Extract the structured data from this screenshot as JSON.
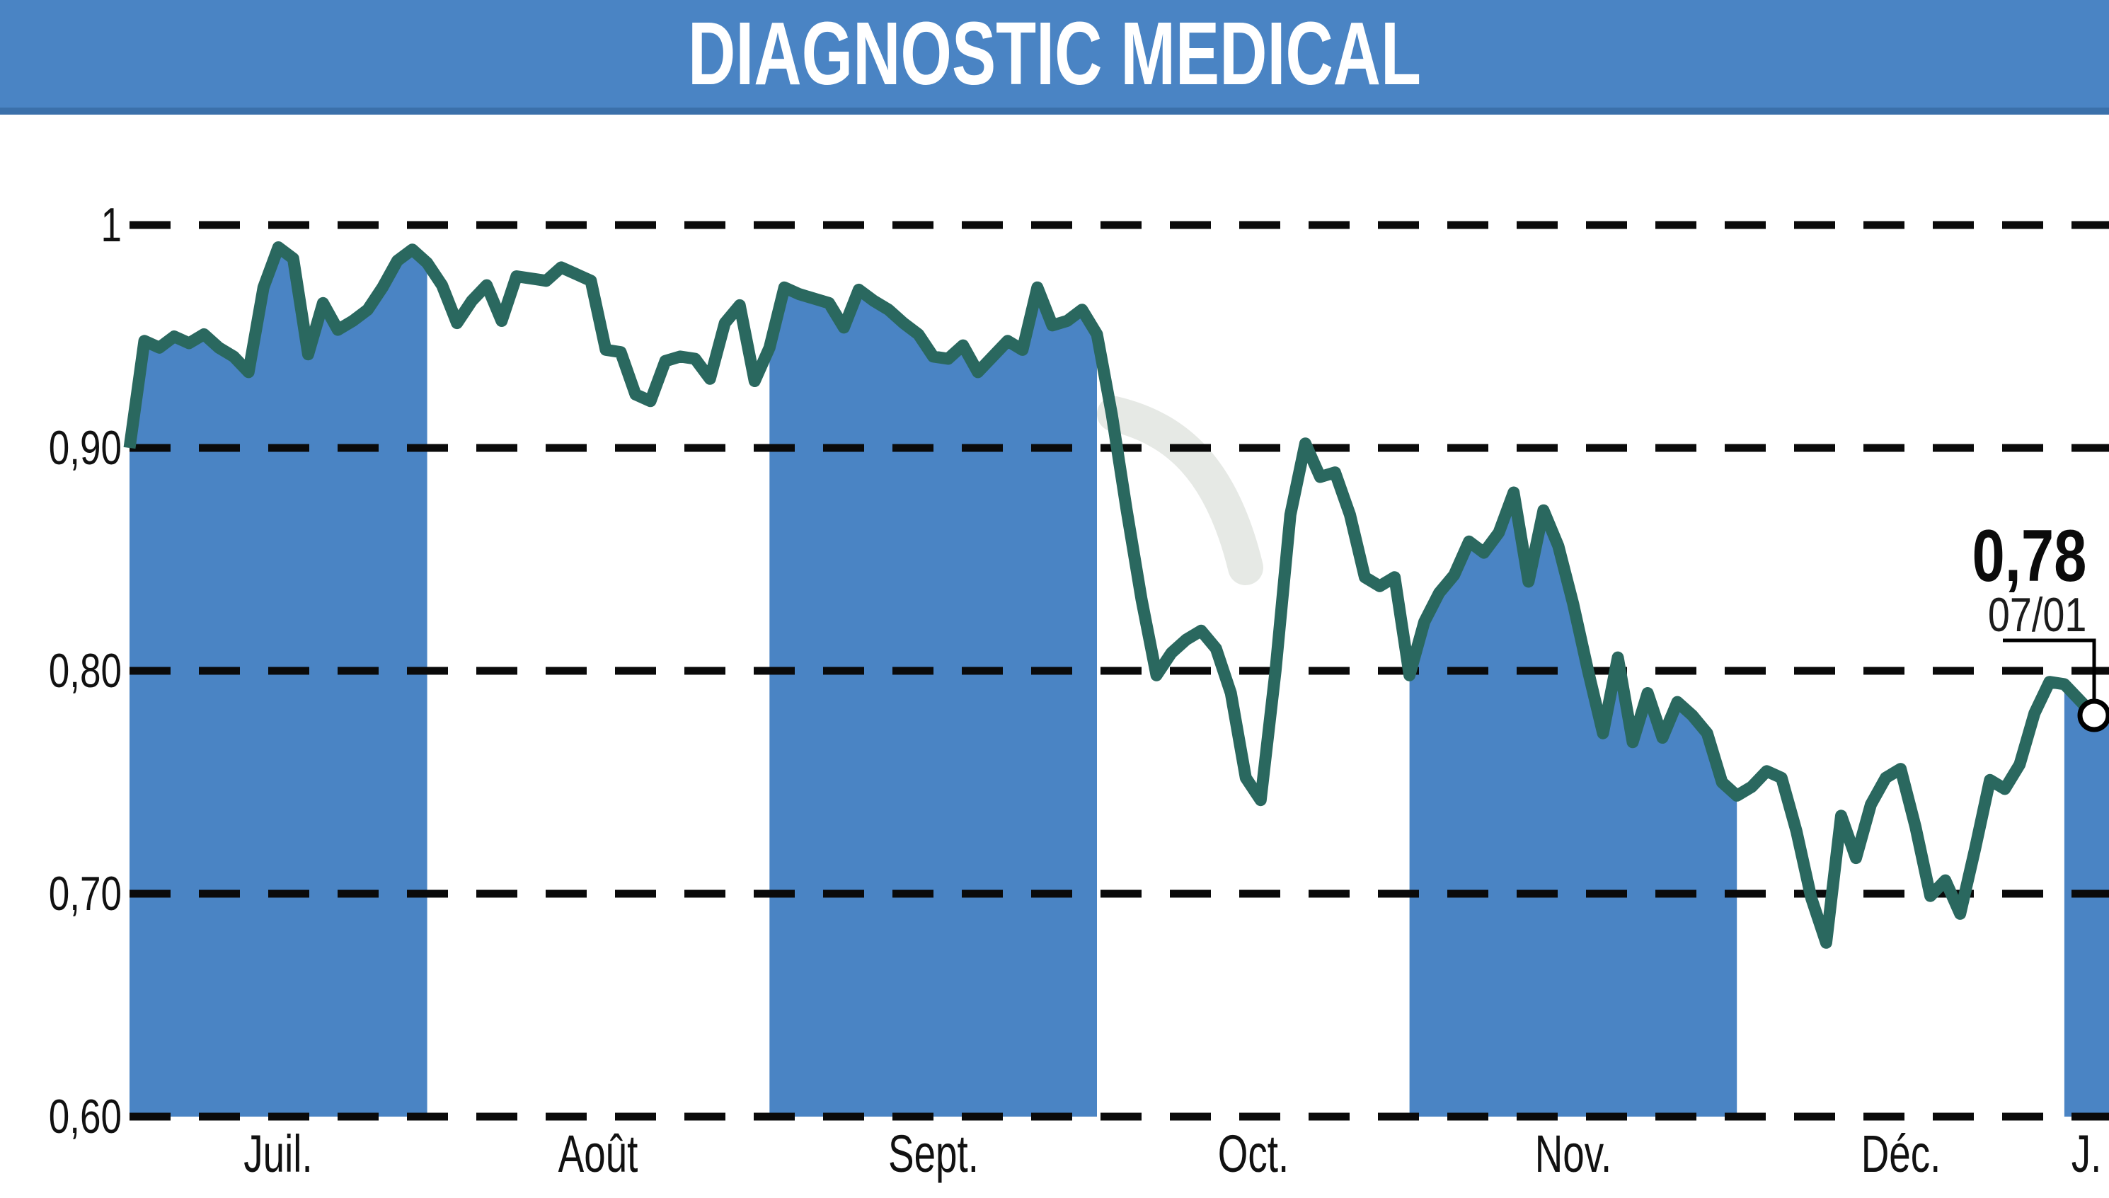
{
  "header": {
    "title": "DIAGNOSTIC MEDICAL",
    "bg_color": "#4a84c4",
    "edge_color": "#3b70aa",
    "text_color": "#ffffff"
  },
  "watermark": {
    "name": "swoosh-watermark",
    "color": "#e3e7e2"
  },
  "chart_data": {
    "type": "area",
    "title": "DIAGNOSTIC MEDICAL",
    "xlabel": "",
    "ylabel": "",
    "ylim": [
      0.6,
      1.0
    ],
    "grid": "dashed-horizontal-black",
    "legend": "none",
    "line_color": "#2a685f",
    "fill_color": "#4a84c4",
    "grid_color": "#0a0a0a",
    "y_ticks": [
      {
        "value": 1.0,
        "label": "1"
      },
      {
        "value": 0.9,
        "label": "0,90"
      },
      {
        "value": 0.8,
        "label": "0,80"
      },
      {
        "value": 0.7,
        "label": "0,70"
      },
      {
        "value": 0.6,
        "label": "0,60"
      }
    ],
    "months": [
      {
        "label": "Juil.",
        "shaded": true,
        "values": [
          0.9,
          0.948,
          0.945,
          0.95,
          0.947,
          0.951,
          0.945,
          0.941,
          0.934,
          0.972,
          0.99,
          0.985,
          0.942,
          0.965,
          0.953,
          0.957,
          0.962,
          0.972,
          0.984,
          0.989
        ]
      },
      {
        "label": "Août",
        "shaded": false,
        "values": [
          0.983,
          0.973,
          0.956,
          0.966,
          0.973,
          0.957,
          0.977,
          0.976,
          0.975,
          0.981,
          0.978,
          0.975,
          0.944,
          0.943,
          0.924,
          0.921,
          0.939,
          0.941,
          0.94,
          0.931,
          0.956,
          0.964,
          0.93
        ]
      },
      {
        "label": "Sept.",
        "shaded": true,
        "values": [
          0.945,
          0.972,
          0.969,
          0.967,
          0.965,
          0.954,
          0.971,
          0.966,
          0.962,
          0.956,
          0.951,
          0.941,
          0.94,
          0.946,
          0.934,
          0.941,
          0.948,
          0.944,
          0.972,
          0.955,
          0.957,
          0.962
        ]
      },
      {
        "label": "Oct.",
        "shaded": false,
        "values": [
          0.951,
          0.915,
          0.872,
          0.832,
          0.798,
          0.808,
          0.814,
          0.818,
          0.81,
          0.79,
          0.752,
          0.742,
          0.8,
          0.87,
          0.902,
          0.887,
          0.889,
          0.87,
          0.842,
          0.838,
          0.842
        ]
      },
      {
        "label": "Nov.",
        "shaded": true,
        "values": [
          0.798,
          0.822,
          0.835,
          0.843,
          0.858,
          0.853,
          0.862,
          0.88,
          0.84,
          0.872,
          0.856,
          0.83,
          0.8,
          0.772,
          0.806,
          0.768,
          0.79,
          0.77,
          0.786,
          0.78,
          0.772,
          0.75
        ]
      },
      {
        "label": "Déc.",
        "shaded": false,
        "values": [
          0.744,
          0.748,
          0.755,
          0.752,
          0.728,
          0.698,
          0.678,
          0.735,
          0.716,
          0.74,
          0.752,
          0.756,
          0.73,
          0.699,
          0.706,
          0.691,
          0.72,
          0.751,
          0.747,
          0.758,
          0.781,
          0.795
        ]
      },
      {
        "label": "J.",
        "shaded": true,
        "values": [
          0.794,
          0.787,
          0.78,
          0.78
        ]
      }
    ],
    "last_point": {
      "value": 0.78,
      "value_label": "0,78",
      "date_label": "07/01",
      "marker": "white-circle-black-ring"
    }
  }
}
